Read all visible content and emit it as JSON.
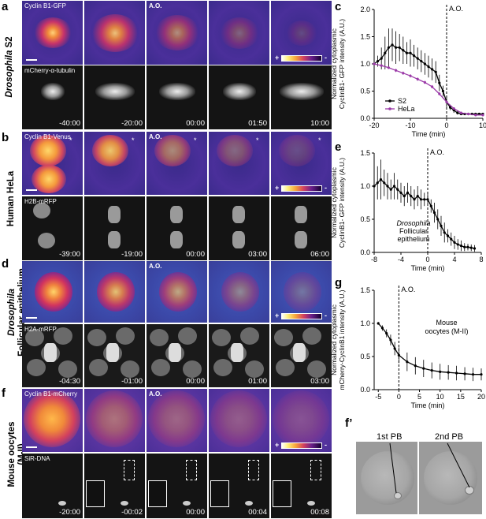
{
  "panels": {
    "a": {
      "letter": "a",
      "row_label_1": "Drosophila",
      "row_label_2": "S2",
      "top_label": "Cyclin B1-GFP",
      "bottom_label": "mCherry-α-tubulin",
      "ao": "A.O.",
      "times": [
        "-40:00",
        "-20:00",
        "00:00",
        "01:50",
        "10:00"
      ],
      "colorbar_plus": "+",
      "colorbar_minus": "-"
    },
    "b": {
      "letter": "b",
      "row_label_1": "Human HeLa",
      "top_label": "Cyclin B1-Venus",
      "bottom_label": "H2B-mRFP",
      "ao": "A.O.",
      "asterisk": "*",
      "times": [
        "-39:00",
        "-19:00",
        "00:00",
        "03:00",
        "06:00"
      ],
      "colorbar_plus": "+",
      "colorbar_minus": "-"
    },
    "d": {
      "letter": "d",
      "row_label_1": "Drosophila",
      "row_label_2": "Follicular epithelium",
      "bottom_label": "H2A-mRFP",
      "ao": "A.O.",
      "times": [
        "-04:30",
        "-01:00",
        "00:00",
        "01:00",
        "03:00"
      ],
      "colorbar_plus": "+",
      "colorbar_minus": "-"
    },
    "f": {
      "letter": "f",
      "row_label_1": "Mouse oocytes",
      "row_label_2": "(M-II)",
      "top_label": "Cyclin B1-mCherry",
      "bottom_label": "SiR-DNA",
      "ao": "A.O.",
      "times": [
        "-20:00",
        "-00:02",
        "00:00",
        "00:04",
        "00:08"
      ],
      "colorbar_plus": "+",
      "colorbar_minus": "-"
    },
    "f_prime": {
      "letter": "f’",
      "label_1": "1st PB",
      "label_2": "2nd PB"
    }
  },
  "chart_data": [
    {
      "panel": "c",
      "type": "line",
      "ylabel_1": "Normalized cytoplasmic",
      "ylabel_2": "CyclinB1- GFP intensity (A.U.)",
      "xlabel": "Time (min)",
      "annotation": "A.O.",
      "xlim": [
        -20,
        10
      ],
      "ylim": [
        0.0,
        2.0
      ],
      "xticks": [
        "-20",
        "-10",
        "0",
        "10"
      ],
      "yticks": [
        "0.0",
        "0.5",
        "1.0",
        "1.5",
        "2.0"
      ],
      "legend_position": "bottom-left",
      "series": [
        {
          "name": "S2",
          "color": "#000000",
          "x": [
            -20,
            -19,
            -18,
            -17,
            -16,
            -15,
            -14,
            -13,
            -12,
            -11,
            -10,
            -9,
            -8,
            -7,
            -6,
            -5,
            -4,
            -3,
            -2,
            -1,
            0,
            1,
            2,
            3,
            4,
            5,
            6,
            7,
            8,
            9,
            10
          ],
          "y": [
            1.0,
            1.05,
            1.1,
            1.2,
            1.3,
            1.35,
            1.3,
            1.3,
            1.25,
            1.2,
            1.2,
            1.15,
            1.1,
            1.05,
            1.0,
            0.95,
            0.9,
            0.85,
            0.65,
            0.5,
            0.3,
            0.2,
            0.15,
            0.1,
            0.08,
            0.08,
            0.08,
            0.08,
            0.08,
            0.08,
            0.08
          ],
          "err": [
            0.05,
            0.1,
            0.2,
            0.3,
            0.35,
            0.3,
            0.3,
            0.25,
            0.25,
            0.2,
            0.25,
            0.2,
            0.2,
            0.2,
            0.2,
            0.2,
            0.2,
            0.2,
            0.15,
            0.1,
            0.1,
            0.05,
            0.05,
            0.03,
            0.02,
            0.02,
            0.02,
            0.02,
            0.02,
            0.02,
            0.02
          ]
        },
        {
          "name": "HeLa",
          "color": "#9b3aa8",
          "x": [
            -20,
            -18,
            -16,
            -14,
            -12,
            -10,
            -8,
            -6,
            -4,
            -2,
            0,
            2,
            4,
            6,
            8,
            10
          ],
          "y": [
            1.0,
            0.97,
            0.93,
            0.88,
            0.83,
            0.78,
            0.72,
            0.66,
            0.58,
            0.45,
            0.3,
            0.18,
            0.1,
            0.08,
            0.06,
            0.06
          ],
          "err": [
            0.02,
            0.02,
            0.02,
            0.03,
            0.03,
            0.03,
            0.03,
            0.03,
            0.03,
            0.03,
            0.03,
            0.02,
            0.02,
            0.01,
            0.01,
            0.01
          ]
        }
      ]
    },
    {
      "panel": "e",
      "type": "line",
      "ylabel_1": "Normalized cytoplasmic",
      "ylabel_2": "CyclinB1- GFP intensity (A.U.)",
      "xlabel": "Time (min)",
      "annotation": "A.O.",
      "inner_label_1": "Drosophila",
      "inner_label_2": "Follicular",
      "inner_label_3": "epithelium",
      "xlim": [
        -8,
        8
      ],
      "ylim": [
        0.0,
        1.5
      ],
      "xticks": [
        "-8",
        "-4",
        "0",
        "4",
        "8"
      ],
      "yticks": [
        "0.0",
        "0.5",
        "1.0",
        "1.5"
      ],
      "series": [
        {
          "color": "#000000",
          "x": [
            -8,
            -7.5,
            -7,
            -6.5,
            -6,
            -5.5,
            -5,
            -4.5,
            -4,
            -3.5,
            -3,
            -2.5,
            -2,
            -1.5,
            -1,
            -0.5,
            0,
            0.5,
            1,
            1.5,
            2,
            2.5,
            3,
            3.5,
            4,
            4.5,
            5,
            5.5,
            6,
            6.5,
            7
          ],
          "y": [
            1.0,
            1.05,
            1.1,
            1.05,
            1.0,
            0.95,
            1.0,
            0.95,
            0.9,
            0.85,
            0.9,
            0.85,
            0.8,
            0.85,
            0.8,
            0.8,
            0.8,
            0.7,
            0.6,
            0.5,
            0.4,
            0.3,
            0.25,
            0.2,
            0.15,
            0.12,
            0.1,
            0.08,
            0.08,
            0.07,
            0.06
          ],
          "err": [
            0.1,
            0.25,
            0.3,
            0.2,
            0.2,
            0.15,
            0.2,
            0.15,
            0.15,
            0.15,
            0.15,
            0.15,
            0.15,
            0.15,
            0.15,
            0.1,
            0.1,
            0.1,
            0.15,
            0.15,
            0.15,
            0.15,
            0.1,
            0.1,
            0.1,
            0.08,
            0.08,
            0.06,
            0.05,
            0.05,
            0.05
          ]
        }
      ]
    },
    {
      "panel": "g",
      "type": "line",
      "ylabel_1": "Normalized cytoplasmic",
      "ylabel_2": "mCherry-CyclinB1 intensity (A.U.)",
      "xlabel": "Time (min)",
      "annotation": "A.O.",
      "inner_label_1": "Mouse",
      "inner_label_2": "oocytes (M-II)",
      "xlim": [
        -6,
        20
      ],
      "ylim": [
        0.0,
        1.5
      ],
      "xticks": [
        "-5",
        "0",
        "5",
        "10",
        "15",
        "20"
      ],
      "yticks": [
        "0.0",
        "0.5",
        "1.0",
        "1.5"
      ],
      "series": [
        {
          "color": "#000000",
          "x": [
            -5,
            -4,
            -3,
            -2,
            -1,
            0,
            2,
            4,
            6,
            8,
            10,
            12,
            14,
            16,
            18,
            20
          ],
          "y": [
            1.0,
            0.93,
            0.85,
            0.75,
            0.62,
            0.52,
            0.42,
            0.36,
            0.32,
            0.29,
            0.27,
            0.26,
            0.25,
            0.24,
            0.23,
            0.23
          ],
          "err": [
            0.02,
            0.04,
            0.06,
            0.08,
            0.1,
            0.12,
            0.14,
            0.13,
            0.13,
            0.12,
            0.12,
            0.11,
            0.11,
            0.1,
            0.1,
            0.09
          ]
        }
      ]
    }
  ]
}
